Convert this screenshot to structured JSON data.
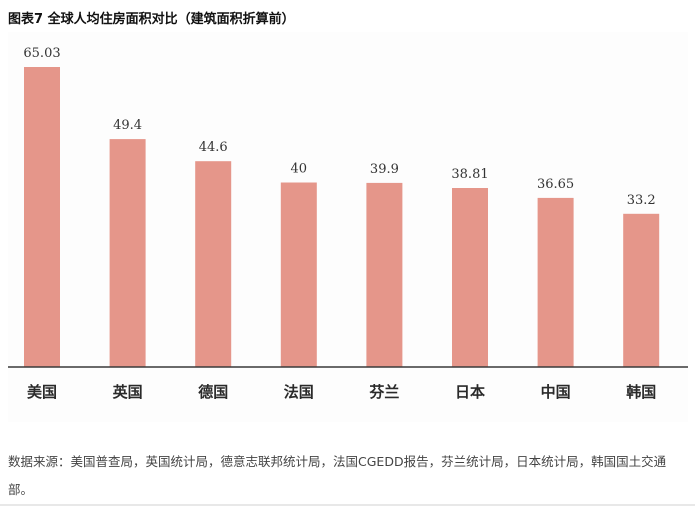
{
  "title": "图表7  全球人均住房面积对比（建筑面积折算前）",
  "source_note": "数据来源：美国普查局，英国统计局，德意志联邦统计局，法国CGEDD报告，芬兰统计局，日本统计局，韩国国土交通部。",
  "colors": {
    "bar": "#e5968a",
    "axis": "#3a3a3a",
    "panel": "#fdfdfd"
  },
  "chart_data": {
    "type": "bar",
    "categories": [
      "美国",
      "英国",
      "德国",
      "法国",
      "芬兰",
      "日本",
      "中国",
      "韩国"
    ],
    "values": [
      65.03,
      49.4,
      44.6,
      40,
      39.9,
      38.81,
      36.65,
      33.2
    ],
    "value_labels": [
      "65.03",
      "49.4",
      "44.6",
      "40",
      "39.9",
      "38.81",
      "36.65",
      "33.2"
    ],
    "ylim": [
      0,
      70
    ],
    "grid": false,
    "legend": "none"
  }
}
